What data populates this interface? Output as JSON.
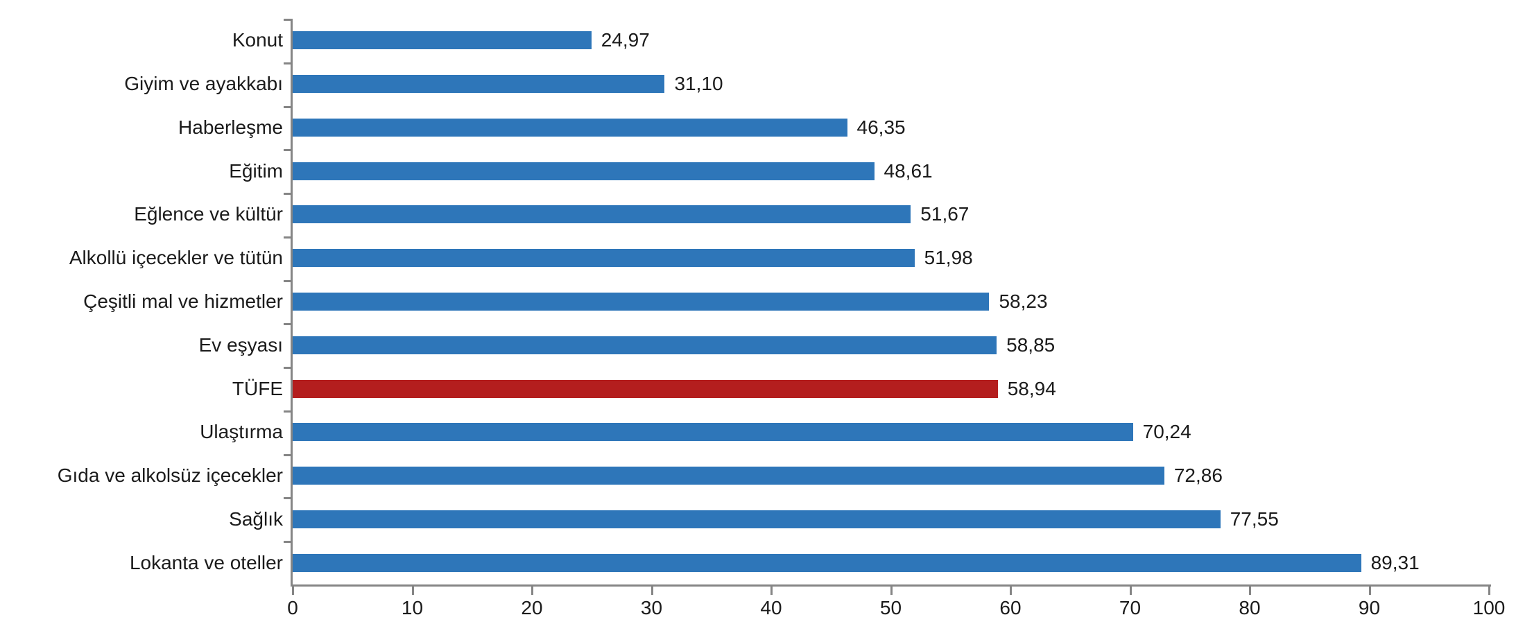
{
  "chart_data": {
    "type": "bar",
    "orientation": "horizontal",
    "title": "",
    "xlabel": "",
    "ylabel": "",
    "grid": false,
    "legend": false,
    "categories": [
      "Konut",
      "Giyim ve ayakkabı",
      "Haberleşme",
      "Eğitim",
      "Eğlence ve kültür",
      "Alkollü içecekler ve tütün",
      "Çeşitli mal ve hizmetler",
      "Ev eşyası",
      "TÜFE",
      "Ulaştırma",
      "Gıda ve alkolsüz içecekler",
      "Sağlık",
      "Lokanta ve oteller"
    ],
    "values": [
      24.97,
      31.1,
      46.35,
      48.61,
      51.67,
      51.98,
      58.23,
      58.85,
      58.94,
      70.24,
      72.86,
      77.55,
      89.31
    ],
    "value_labels": [
      "24,97",
      "31,10",
      "46,35",
      "48,61",
      "51,67",
      "51,98",
      "58,23",
      "58,85",
      "58,94",
      "70,24",
      "72,86",
      "77,55",
      "89,31"
    ],
    "highlight_category": "TÜFE",
    "colors": {
      "bar": "#2E76B9",
      "highlight_bar": "#B41E1E",
      "axis": "#858585",
      "text": "#1B1B1B"
    },
    "x_axis": {
      "min": 0,
      "max": 100,
      "tick_step": 10,
      "tick_labels": [
        "0",
        "10",
        "20",
        "30",
        "40",
        "50",
        "60",
        "70",
        "80",
        "90",
        "100"
      ]
    }
  }
}
